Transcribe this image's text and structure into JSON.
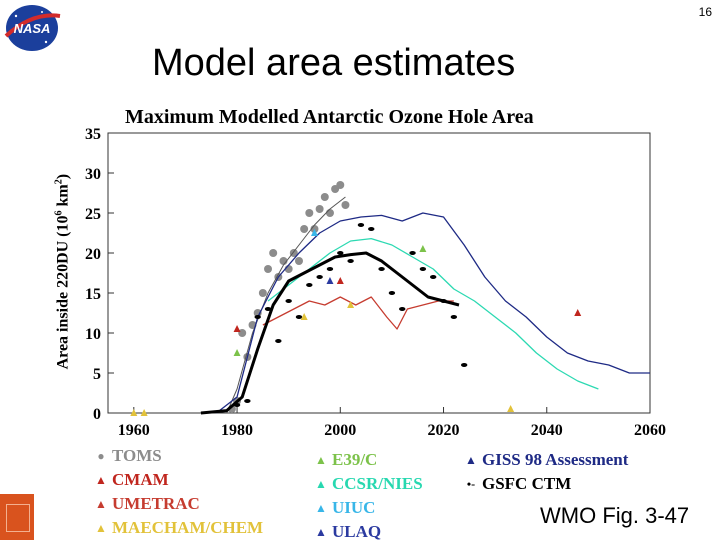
{
  "page_number": "16",
  "slide_title": "Model area estimates",
  "logo": {
    "text": "NASA",
    "icon": "nasa-meatball-icon"
  },
  "caption": "WMO Fig. 3-47",
  "chart_data": {
    "type": "scatter+line",
    "title": "Maximum Modelled Antarctic Ozone Hole Area",
    "ylabel_main": "Area inside 220DU (10",
    "ylabel_sup": "6",
    "ylabel_unit": " km",
    "ylabel_sup2": "2",
    "ylabel_end": ")",
    "xlim": [
      1955,
      2060
    ],
    "ylim": [
      0,
      35
    ],
    "xticks": [
      "1960",
      "1980",
      "2000",
      "2020",
      "2040",
      "2060"
    ],
    "yticks": [
      "0",
      "5",
      "10",
      "15",
      "20",
      "25",
      "30",
      "35"
    ],
    "colors": {
      "toms": "#8c8c8c",
      "black": "#000000",
      "cmam": "#c0261e",
      "yellow": "#e2c23a",
      "green": "#7cc24a",
      "teal": "#27d8b0",
      "blue": "#2b3aa0",
      "cyan": "#38b6e8",
      "red": "#c63c30"
    },
    "series": [
      {
        "name": "TOMS",
        "kind": "points",
        "color": "#8c8c8c",
        "x": [
          1979,
          1980,
          1981,
          1982,
          1983,
          1984,
          1985,
          1986,
          1987,
          1988,
          1989,
          1990,
          1991,
          1992,
          1993,
          1994,
          1995,
          1996,
          1997,
          1998,
          1999,
          2000,
          2001
        ],
        "y": [
          0.5,
          1.5,
          10,
          7,
          11,
          12.5,
          15,
          18,
          20,
          17,
          19,
          18,
          20,
          19,
          23,
          25,
          23,
          25.5,
          27,
          25,
          28,
          28.5,
          26
        ]
      },
      {
        "name": "TOMS fit",
        "kind": "line",
        "color": "#555555",
        "width": 1,
        "x": [
          1978,
          1980,
          1983,
          1986,
          1989,
          1992,
          1995,
          1998,
          2001
        ],
        "y": [
          0,
          3,
          10,
          15,
          18.5,
          21,
          23.5,
          25.5,
          27
        ]
      },
      {
        "name": "GISS 98 Assessment",
        "kind": "line",
        "color": "#1e2a85",
        "width": 1.3,
        "x": [
          1976,
          1980,
          1984,
          1988,
          1992,
          1996,
          2000,
          2004,
          2008,
          2012,
          2016,
          2020,
          2024,
          2028,
          2032,
          2036,
          2040,
          2044,
          2048,
          2052,
          2056,
          2060
        ],
        "y": [
          0,
          2,
          12,
          17,
          20,
          22.5,
          24,
          24.5,
          24.7,
          24,
          25,
          24.5,
          21,
          17,
          14,
          12,
          9.5,
          7.5,
          6.5,
          6,
          5,
          5
        ]
      },
      {
        "name": "CCSR/NIES",
        "kind": "line",
        "color": "#2cd9b2",
        "width": 1.3,
        "x": [
          1986,
          1990,
          1994,
          1998,
          2002,
          2006,
          2010,
          2014,
          2018,
          2022,
          2026,
          2030,
          2034,
          2038,
          2042,
          2046,
          2050
        ],
        "y": [
          14,
          16,
          18,
          20,
          21.5,
          21.8,
          21,
          19.5,
          18,
          15.5,
          14,
          12,
          10,
          7.5,
          5.5,
          4,
          3
        ]
      },
      {
        "name": "UMETRAC",
        "kind": "line",
        "color": "#c63c30",
        "width": 1.3,
        "x": [
          1985,
          1988,
          1991,
          1994,
          1997,
          2000,
          2003,
          2006,
          2009,
          2011,
          2013,
          2016,
          2019,
          2022
        ],
        "y": [
          11,
          12,
          13,
          14,
          13.5,
          14.5,
          13.5,
          14.5,
          12,
          10.5,
          13,
          13.5,
          14,
          14
        ]
      },
      {
        "name": "GSFC CTM",
        "kind": "line",
        "color": "#000000",
        "width": 3,
        "x": [
          1973,
          1978,
          1981,
          1984,
          1987,
          1990,
          1993,
          1996,
          1999,
          2002,
          2005,
          2008,
          2011,
          2014,
          2017,
          2020,
          2023
        ],
        "y": [
          0,
          0.3,
          2,
          8,
          13.5,
          16.5,
          17.5,
          18.5,
          19.5,
          19.8,
          20,
          19,
          17.5,
          16,
          14.5,
          14,
          13.5
        ]
      },
      {
        "name": "GSFC CTM dashes",
        "kind": "points",
        "color": "#000000",
        "x": [
          1980,
          1982,
          1984,
          1986,
          1988,
          1990,
          1992,
          1994,
          1996,
          1998,
          2000,
          2002,
          2004,
          2006,
          2008,
          2010,
          2012,
          2014,
          2016,
          2018,
          2020,
          2022,
          2024
        ],
        "y": [
          1,
          1.5,
          12,
          13,
          9,
          14,
          12,
          16,
          17,
          18,
          20,
          19,
          23.5,
          23,
          18,
          15,
          13,
          20,
          18,
          17,
          14,
          12,
          6
        ]
      },
      {
        "name": "CMAM",
        "kind": "triangles",
        "color": "#c0261e",
        "x": [
          1980,
          2000,
          2046
        ],
        "y": [
          10.5,
          16.5,
          12.5
        ]
      },
      {
        "name": "MAECHAM/CHEM",
        "kind": "triangles",
        "color": "#e2c23a",
        "x": [
          1960,
          1962,
          1993,
          2002,
          2033
        ],
        "y": [
          0,
          0,
          12,
          13.5,
          0.5
        ]
      },
      {
        "name": "E39/C",
        "kind": "triangles",
        "color": "#7cc24a",
        "x": [
          1980,
          2016
        ],
        "y": [
          7.5,
          20.5
        ]
      },
      {
        "name": "UIUC",
        "kind": "triangles",
        "color": "#38b6e8",
        "x": [
          1995
        ],
        "y": [
          22.5
        ]
      },
      {
        "name": "ULAQ",
        "kind": "triangles",
        "color": "#2b3aa0",
        "x": [
          1998
        ],
        "y": [
          16.5
        ]
      }
    ],
    "legend": [
      {
        "label": "TOMS",
        "marker": "●",
        "color": "#8c8c8c",
        "text_color": "#8c8c8c"
      },
      {
        "label": "CMAM",
        "marker": "▲",
        "color": "#c0261e",
        "text_color": "#c0261e"
      },
      {
        "label": "UMETRAC",
        "marker": "▲",
        "color": "#c63c30",
        "text_color": "#c63c30"
      },
      {
        "label": "MAECHAM/CHEM",
        "marker": "▲",
        "color": "#e2c23a",
        "text_color": "#e2c23a"
      },
      {
        "label": "E39/C",
        "marker": "▲",
        "color": "#7cc24a",
        "text_color": "#7cc24a"
      },
      {
        "label": "CCSR/NIES",
        "marker": "▲",
        "color": "#27d8b0",
        "text_color": "#27d8b0"
      },
      {
        "label": "UIUC",
        "marker": "▲",
        "color": "#38b6e8",
        "text_color": "#38b6e8"
      },
      {
        "label": "ULAQ",
        "marker": "▲",
        "color": "#2b3aa0",
        "text_color": "#2b3aa0"
      },
      {
        "label": "GISS 98 Assessment",
        "marker": "▲",
        "color": "#1e2a85",
        "text_color": "#1e2a85"
      },
      {
        "label": "GSFC CTM",
        "marker": "•-",
        "color": "#000000",
        "text_color": "#000000"
      }
    ]
  }
}
